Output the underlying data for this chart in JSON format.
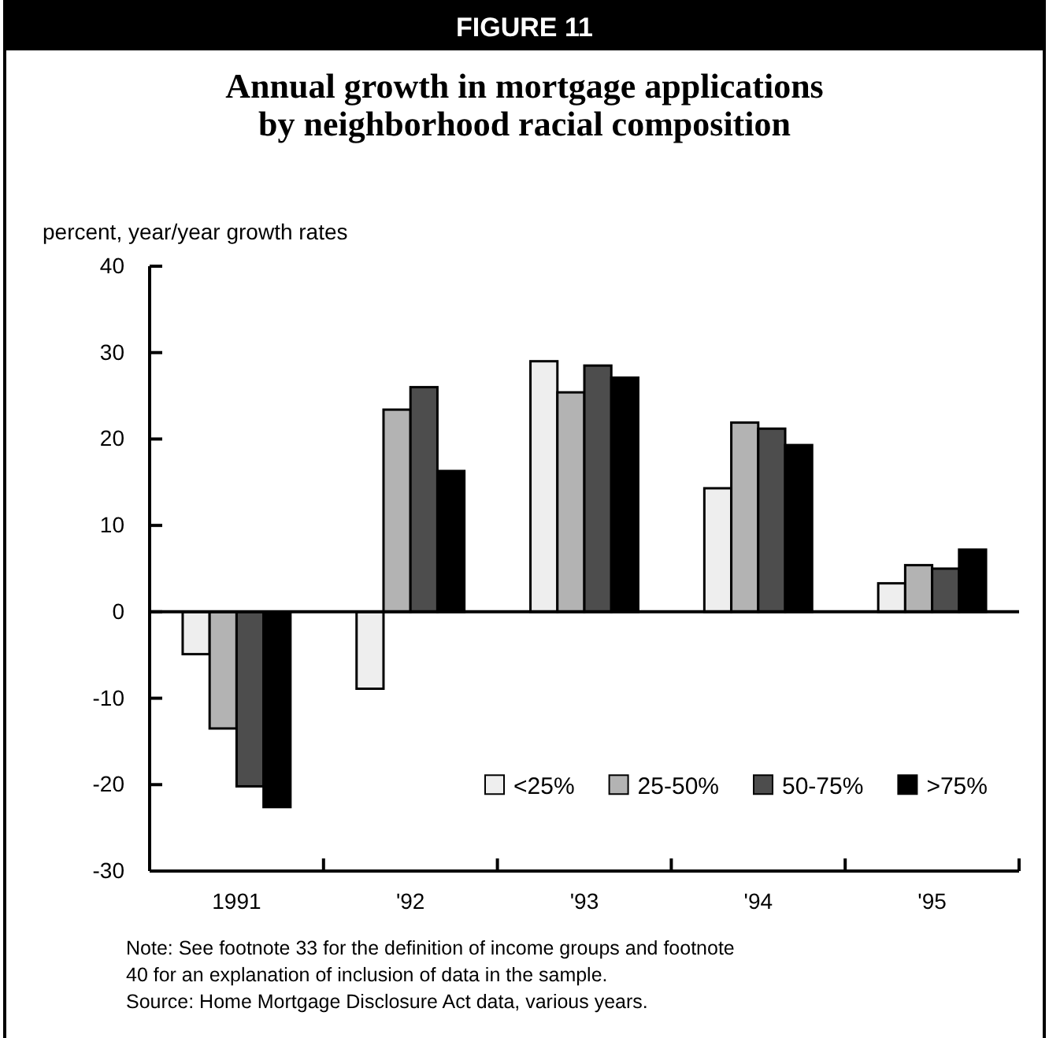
{
  "chart_data": {
    "type": "bar",
    "subtitle": "FIGURE 11",
    "title": "Annual growth in mortgage applications\nby neighborhood racial composition",
    "ylabel": "percent, year/year growth rates",
    "categories": [
      "1991",
      "'92",
      "'93",
      "'94",
      "'95"
    ],
    "series": [
      {
        "name": "<25%",
        "color": "#eeeeee",
        "values": [
          -4.9,
          -8.9,
          29.0,
          14.3,
          3.3
        ]
      },
      {
        "name": "25-50%",
        "color": "#b3b3b3",
        "values": [
          -13.5,
          23.4,
          25.4,
          21.9,
          5.4
        ]
      },
      {
        "name": "50-75%",
        "color": "#4d4d4d",
        "values": [
          -20.2,
          26.0,
          28.5,
          21.2,
          5.0
        ]
      },
      {
        "name": ">75%",
        "color": "#000000",
        "values": [
          -22.6,
          16.3,
          27.1,
          19.3,
          7.2
        ]
      }
    ],
    "ylim": [
      -30,
      40
    ],
    "yticks": [
      -30,
      -20,
      -10,
      0,
      10,
      20,
      30,
      40
    ],
    "legend": "bottom right",
    "annotations": [
      "Note: See footnote 33 for the definition of income groups and footnote 40 for an explanation of inclusion of data in the sample.",
      "Source: Home Mortgage Disclosure Act data, various years."
    ]
  }
}
